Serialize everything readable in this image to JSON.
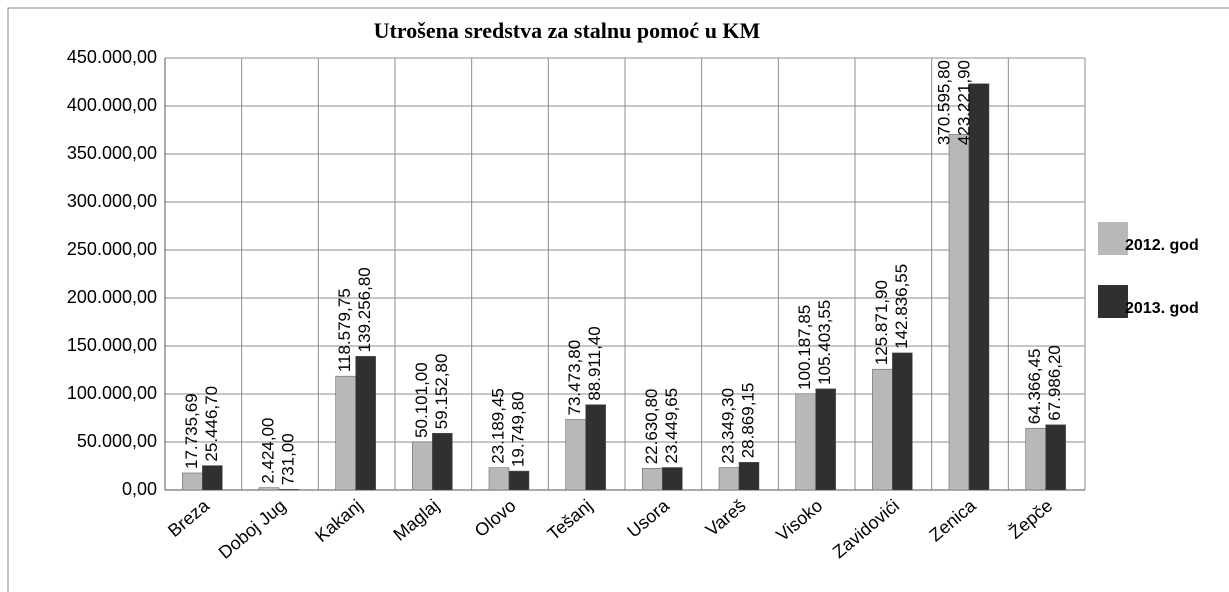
{
  "chart_data": {
    "type": "bar",
    "title": "Utrošena sredstva za stalnu pomoć u KM",
    "categories": [
      "Breza",
      "Doboj Jug",
      "Kakanj",
      "Maglaj",
      "Olovo",
      "Tešanj",
      "Usora",
      "Vareš",
      "Visoko",
      "Zavidovići",
      "Zenica",
      "Žepče"
    ],
    "series": [
      {
        "name": "2012. god",
        "color": "#b8b8b8",
        "values": [
          17735.69,
          2424,
          118579.75,
          50101,
          23189.45,
          73473.8,
          22630.8,
          23349.3,
          100187.85,
          125871.9,
          370595.8,
          64366.45
        ],
        "value_labels": [
          "17.735,69",
          "2.424,00",
          "118.579,75",
          "50.101,00",
          "23.189,45",
          "73.473,80",
          "22.630,80",
          "23.349,30",
          "100.187,85",
          "125.871,90",
          "370.595,80",
          "64.366,45"
        ]
      },
      {
        "name": "2013. god",
        "color": "#303030",
        "values": [
          25446.7,
          731,
          139256.8,
          59152.8,
          19749.8,
          88911.4,
          23449.65,
          28869.15,
          105403.55,
          142836.55,
          423221.9,
          67986.2
        ],
        "value_labels": [
          "25.446,70",
          "731,00",
          "139.256,80",
          "59.152,80",
          "19.749,80",
          "88.911,40",
          "23.449,65",
          "28.869,15",
          "105.403,55",
          "142.836,55",
          "423.221,90",
          "67.986,20"
        ]
      }
    ],
    "ylim": [
      0,
      450000
    ],
    "yticks": [
      {
        "value": 0,
        "label": "0,00"
      },
      {
        "value": 50000,
        "label": "50.000,00"
      },
      {
        "value": 100000,
        "label": "100.000,00"
      },
      {
        "value": 150000,
        "label": "150.000,00"
      },
      {
        "value": 200000,
        "label": "200.000,00"
      },
      {
        "value": 250000,
        "label": "250.000,00"
      },
      {
        "value": 300000,
        "label": "300.000,00"
      },
      {
        "value": 350000,
        "label": "350.000,00"
      },
      {
        "value": 400000,
        "label": "400.000,00"
      },
      {
        "value": 450000,
        "label": "450.000,00"
      }
    ],
    "grid": true,
    "legend": "right"
  }
}
